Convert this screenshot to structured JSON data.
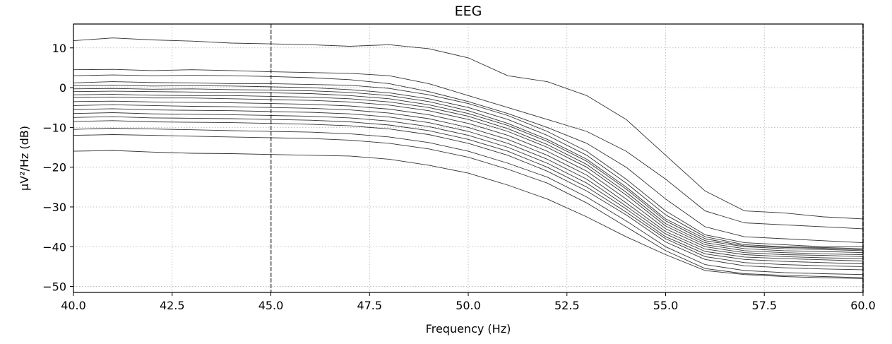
{
  "chart_data": {
    "type": "line",
    "title": "EEG",
    "xlabel": "Frequency (Hz)",
    "ylabel": "µV²/Hz (dB)",
    "xlim": [
      40,
      60
    ],
    "ylim": [
      -51.5,
      16
    ],
    "xticks": [
      40.0,
      42.5,
      45.0,
      47.5,
      50.0,
      52.5,
      55.0,
      57.5,
      60.0
    ],
    "xtick_labels": [
      "40.0",
      "42.5",
      "45.0",
      "47.5",
      "50.0",
      "52.5",
      "55.0",
      "57.5",
      "60.0"
    ],
    "yticks": [
      10,
      0,
      -10,
      -20,
      -30,
      -40,
      -50
    ],
    "ytick_labels": [
      "10",
      "0",
      "−10",
      "−20",
      "−30",
      "−40",
      "−50"
    ],
    "grid": true,
    "markers": [
      {
        "x": 45.0,
        "style": "dashed",
        "color": "#999999"
      },
      {
        "x": 60.0,
        "style": "dashed",
        "color": "#999999"
      }
    ],
    "line_color": "#000000",
    "x": [
      40,
      41,
      42,
      43,
      44,
      45,
      46,
      47,
      48,
      49,
      50,
      51,
      52,
      53,
      54,
      55,
      56,
      57,
      58,
      59,
      60
    ],
    "series": [
      {
        "values": [
          11.8,
          12.5,
          12.0,
          11.7,
          11.2,
          11.0,
          10.8,
          10.4,
          10.8,
          9.8,
          7.5,
          3.0,
          1.5,
          -2.0,
          -8.0,
          -17.0,
          -26.0,
          -31.0,
          -31.5,
          -32.5,
          -33.0
        ]
      },
      {
        "values": [
          4.5,
          4.6,
          4.3,
          4.5,
          4.3,
          4.0,
          3.8,
          3.6,
          3.0,
          1.0,
          -2.0,
          -5.0,
          -8.0,
          -11.0,
          -16.0,
          -23.0,
          -31.0,
          -34.0,
          -34.5,
          -35.0,
          -35.5
        ]
      },
      {
        "values": [
          3.0,
          3.2,
          3.0,
          3.1,
          3.0,
          2.8,
          2.5,
          2.0,
          1.0,
          -1.0,
          -3.5,
          -6.5,
          -10.0,
          -14.0,
          -20.0,
          -28.0,
          -35.0,
          -37.5,
          -38.0,
          -38.5,
          -39.0
        ]
      },
      {
        "values": [
          1.2,
          1.5,
          1.3,
          1.2,
          1.0,
          1.0,
          0.8,
          0.6,
          -0.2,
          -1.8,
          -4.0,
          -7.0,
          -11.0,
          -16.0,
          -23.0,
          -31.0,
          -37.0,
          -39.0,
          -39.5,
          -40.0,
          -40.0
        ]
      },
      {
        "values": [
          0.5,
          0.6,
          0.4,
          0.5,
          0.4,
          0.2,
          0.0,
          -0.5,
          -1.3,
          -2.8,
          -5.0,
          -8.0,
          -12.0,
          -17.0,
          -24.0,
          -32.0,
          -37.5,
          -39.5,
          -40.0,
          -40.2,
          -40.5
        ]
      },
      {
        "values": [
          -0.3,
          -0.2,
          -0.4,
          -0.3,
          -0.5,
          -0.6,
          -0.8,
          -1.2,
          -2.0,
          -3.5,
          -5.8,
          -9.0,
          -13.0,
          -18.0,
          -25.0,
          -33.0,
          -38.0,
          -39.8,
          -40.2,
          -40.4,
          -40.8
        ]
      },
      {
        "values": [
          -1.0,
          -0.9,
          -1.0,
          -1.1,
          -1.2,
          -1.3,
          -1.5,
          -2.0,
          -2.8,
          -4.3,
          -6.5,
          -9.5,
          -13.5,
          -18.5,
          -25.5,
          -33.5,
          -38.5,
          -40.0,
          -40.5,
          -40.7,
          -41.0
        ]
      },
      {
        "values": [
          -1.8,
          -1.7,
          -1.9,
          -2.0,
          -2.0,
          -2.2,
          -2.4,
          -2.8,
          -3.6,
          -5.0,
          -7.2,
          -10.3,
          -14.3,
          -19.3,
          -26.3,
          -34.2,
          -39.0,
          -40.5,
          -41.0,
          -41.2,
          -41.5
        ]
      },
      {
        "values": [
          -2.5,
          -2.4,
          -2.6,
          -2.6,
          -2.8,
          -3.0,
          -3.2,
          -3.6,
          -4.4,
          -5.8,
          -8.0,
          -11.0,
          -15.0,
          -20.0,
          -27.0,
          -34.8,
          -39.5,
          -41.0,
          -41.5,
          -41.8,
          -42.0
        ]
      },
      {
        "values": [
          -3.5,
          -3.4,
          -3.6,
          -3.7,
          -3.8,
          -4.0,
          -4.2,
          -4.6,
          -5.4,
          -6.8,
          -9.0,
          -12.0,
          -16.0,
          -21.0,
          -28.0,
          -35.5,
          -40.0,
          -41.5,
          -42.0,
          -42.2,
          -42.5
        ]
      },
      {
        "values": [
          -4.5,
          -4.3,
          -4.5,
          -4.7,
          -4.8,
          -5.0,
          -5.2,
          -5.6,
          -6.4,
          -7.8,
          -10.0,
          -13.0,
          -17.0,
          -22.0,
          -29.0,
          -36.2,
          -40.6,
          -42.0,
          -42.5,
          -42.8,
          -43.0
        ]
      },
      {
        "values": [
          -5.5,
          -5.3,
          -5.6,
          -5.7,
          -5.8,
          -6.0,
          -6.2,
          -6.6,
          -7.4,
          -8.8,
          -11.0,
          -14.0,
          -18.0,
          -23.0,
          -29.8,
          -36.8,
          -41.2,
          -42.6,
          -43.0,
          -43.3,
          -43.6
        ]
      },
      {
        "values": [
          -6.5,
          -6.3,
          -6.6,
          -6.7,
          -6.8,
          -7.0,
          -7.2,
          -7.6,
          -8.4,
          -9.8,
          -12.0,
          -15.0,
          -19.0,
          -24.0,
          -30.5,
          -37.5,
          -41.8,
          -43.2,
          -43.7,
          -44.0,
          -44.3
        ]
      },
      {
        "values": [
          -7.5,
          -7.3,
          -7.6,
          -7.7,
          -7.8,
          -8.0,
          -8.2,
          -8.6,
          -9.4,
          -10.8,
          -13.0,
          -16.0,
          -20.0,
          -25.0,
          -31.3,
          -38.0,
          -42.5,
          -44.0,
          -44.5,
          -44.8,
          -45.0
        ]
      },
      {
        "values": [
          -8.5,
          -8.3,
          -8.6,
          -8.7,
          -8.8,
          -9.0,
          -9.2,
          -9.6,
          -10.4,
          -11.8,
          -14.0,
          -17.0,
          -21.0,
          -26.0,
          -32.0,
          -38.8,
          -43.2,
          -44.8,
          -45.3,
          -45.6,
          -45.8
        ]
      },
      {
        "values": [
          -10.5,
          -10.2,
          -10.4,
          -10.6,
          -10.8,
          -11.0,
          -11.2,
          -11.6,
          -12.4,
          -13.8,
          -16.0,
          -19.0,
          -22.5,
          -27.5,
          -33.5,
          -40.0,
          -44.5,
          -46.0,
          -46.5,
          -46.8,
          -47.0
        ]
      },
      {
        "values": [
          -12.0,
          -11.8,
          -12.0,
          -12.2,
          -12.4,
          -12.6,
          -12.8,
          -13.2,
          -14.0,
          -15.4,
          -17.5,
          -20.5,
          -24.0,
          -29.0,
          -35.0,
          -41.0,
          -45.5,
          -46.8,
          -47.2,
          -47.5,
          -47.8
        ]
      },
      {
        "values": [
          -16.0,
          -15.8,
          -16.2,
          -16.5,
          -16.6,
          -16.8,
          -17.0,
          -17.2,
          -18.0,
          -19.5,
          -21.5,
          -24.5,
          -28.0,
          -32.5,
          -37.5,
          -42.0,
          -46.0,
          -47.0,
          -47.5,
          -47.8,
          -48.0
        ]
      }
    ]
  }
}
